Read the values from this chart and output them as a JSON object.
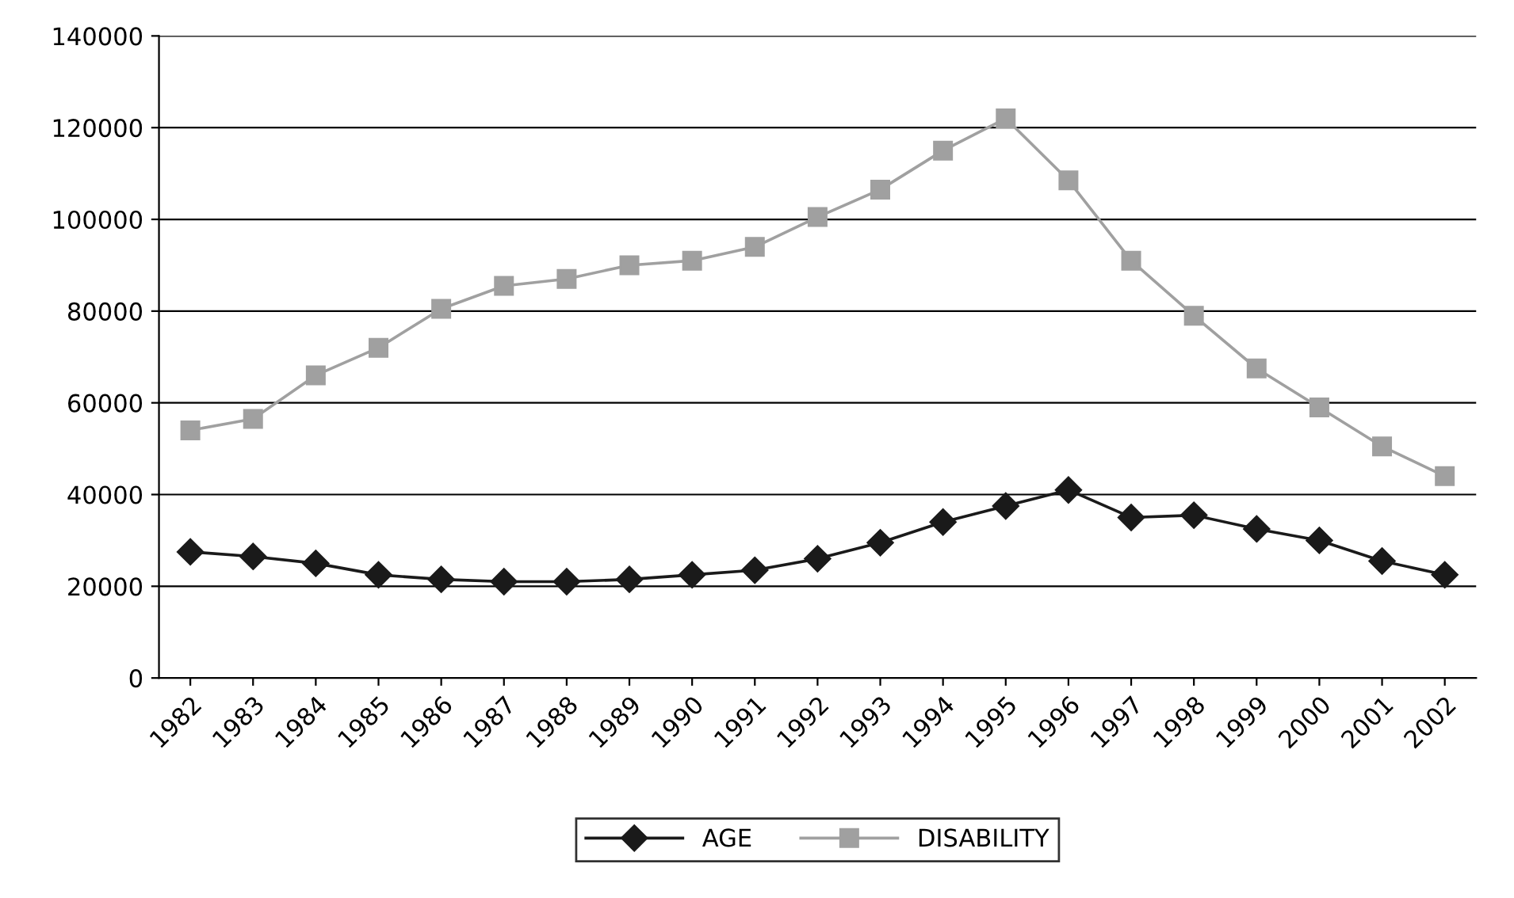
{
  "chart_data": {
    "type": "line",
    "categories": [
      "1982",
      "1983",
      "1984",
      "1985",
      "1986",
      "1987",
      "1988",
      "1989",
      "1990",
      "1991",
      "1992",
      "1993",
      "1994",
      "1995",
      "1996",
      "1997",
      "1998",
      "1999",
      "2000",
      "2001",
      "2002"
    ],
    "series": [
      {
        "name": "AGE",
        "color": "#1a1a1a",
        "marker": "diamond",
        "values": [
          27500,
          26500,
          25000,
          22500,
          21500,
          21000,
          21000,
          21500,
          22500,
          23500,
          26000,
          29500,
          34000,
          37500,
          41000,
          35000,
          35500,
          32500,
          30000,
          25500,
          22500
        ]
      },
      {
        "name": "DISABILITY",
        "color": "#a0a0a0",
        "marker": "square",
        "values": [
          54000,
          56500,
          66000,
          72000,
          80500,
          85500,
          87000,
          90000,
          91000,
          94000,
          100500,
          106500,
          115000,
          122000,
          108500,
          91000,
          79000,
          67500,
          59000,
          50500,
          44000
        ]
      }
    ],
    "ylim": [
      0,
      140000
    ],
    "yticks": [
      0,
      20000,
      40000,
      60000,
      80000,
      100000,
      120000,
      140000
    ],
    "grid": "y",
    "legend": "bottom",
    "line_style": "solid"
  }
}
